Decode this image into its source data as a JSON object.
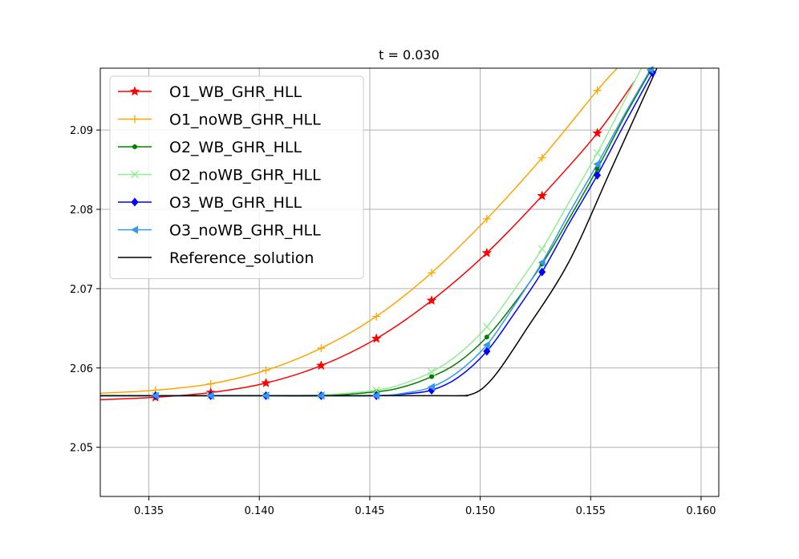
{
  "chart_data": {
    "type": "line",
    "title": "t = 0.030",
    "xlabel": "",
    "ylabel": "",
    "xlim": [
      0.1328,
      0.1608
    ],
    "ylim": [
      2.0438,
      2.0978
    ],
    "xticks": [
      0.135,
      0.14,
      0.145,
      0.15,
      0.155,
      0.16
    ],
    "xtick_labels": [
      "0.135",
      "0.140",
      "0.145",
      "0.150",
      "0.155",
      "0.160"
    ],
    "yticks": [
      2.05,
      2.06,
      2.07,
      2.08,
      2.09
    ],
    "ytick_labels": [
      "2.05",
      "2.06",
      "2.07",
      "2.08",
      "2.09"
    ],
    "grid": true,
    "legend_position": "top-left",
    "series": [
      {
        "name": "O1_WB_GHR_HLL",
        "color": "#ff0000",
        "marker": "star",
        "x": [
          0.1328,
          0.1353,
          0.1378,
          0.1403,
          0.1428,
          0.1453,
          0.1478,
          0.1503,
          0.1528,
          0.1553,
          0.157
        ],
        "y": [
          2.056,
          2.0563,
          2.0569,
          2.0581,
          2.0603,
          2.0637,
          2.0685,
          2.0745,
          2.0817,
          2.0896,
          2.0962
        ],
        "marker_x": [
          0.1353,
          0.1378,
          0.1403,
          0.1428,
          0.1453,
          0.1478,
          0.1503,
          0.1528,
          0.1553
        ],
        "marker_y": [
          2.0563,
          2.0569,
          2.0581,
          2.0603,
          2.0637,
          2.0685,
          2.0745,
          2.0817,
          2.0896
        ]
      },
      {
        "name": "O1_noWB_GHR_HLL",
        "color": "#ffa500",
        "marker": "plus",
        "x": [
          0.1328,
          0.1353,
          0.1378,
          0.1403,
          0.1428,
          0.1453,
          0.1478,
          0.1503,
          0.1528,
          0.1553,
          0.1562
        ],
        "y": [
          2.0568,
          2.0572,
          2.058,
          2.0597,
          2.0625,
          2.0665,
          2.072,
          2.0788,
          2.0865,
          2.095,
          2.0978
        ],
        "marker_x": [
          0.1353,
          0.1378,
          0.1403,
          0.1428,
          0.1453,
          0.1478,
          0.1503,
          0.1528,
          0.1553
        ],
        "marker_y": [
          2.0572,
          2.058,
          2.0597,
          2.0625,
          2.0665,
          2.072,
          2.0788,
          2.0865,
          2.095
        ]
      },
      {
        "name": "O2_WB_GHR_HLL",
        "color": "#008000",
        "marker": "point",
        "x": [
          0.1328,
          0.1353,
          0.1378,
          0.1403,
          0.1428,
          0.1453,
          0.1465,
          0.1478,
          0.149,
          0.1503,
          0.1515,
          0.1528,
          0.154,
          0.1553,
          0.1565,
          0.1577
        ],
        "y": [
          2.0565,
          2.0565,
          2.0565,
          2.0565,
          2.0565,
          2.057,
          2.0576,
          2.0589,
          2.0607,
          2.0639,
          2.068,
          2.0731,
          2.0787,
          2.0851,
          2.0915,
          2.0974
        ],
        "marker_x": [
          0.1353,
          0.1378,
          0.1403,
          0.1428,
          0.1453,
          0.1478,
          0.1503,
          0.1528,
          0.1553,
          0.1577
        ],
        "marker_y": [
          2.0565,
          2.0565,
          2.0565,
          2.0565,
          2.057,
          2.0589,
          2.0639,
          2.0731,
          2.0851,
          2.0974
        ]
      },
      {
        "name": "O2_noWB_GHR_HLL",
        "color": "#90ee90",
        "marker": "x",
        "x": [
          0.1328,
          0.1353,
          0.1378,
          0.1403,
          0.1428,
          0.1453,
          0.1465,
          0.1478,
          0.149,
          0.1503,
          0.1515,
          0.1528,
          0.154,
          0.1553,
          0.1565,
          0.1573
        ],
        "y": [
          2.0565,
          2.0565,
          2.0565,
          2.0565,
          2.0566,
          2.0572,
          2.058,
          2.0595,
          2.0617,
          2.0652,
          2.0697,
          2.075,
          2.0808,
          2.0871,
          2.0935,
          2.0978
        ],
        "marker_x": [
          0.1353,
          0.1378,
          0.1403,
          0.1428,
          0.1453,
          0.1478,
          0.1503,
          0.1528,
          0.1553
        ],
        "marker_y": [
          2.0565,
          2.0565,
          2.0565,
          2.0566,
          2.0572,
          2.0595,
          2.0652,
          2.075,
          2.0871
        ]
      },
      {
        "name": "O3_WB_GHR_HLL",
        "color": "#0000ff",
        "marker": "diamond",
        "x": [
          0.1328,
          0.1353,
          0.1378,
          0.1403,
          0.1428,
          0.1453,
          0.1465,
          0.1478,
          0.149,
          0.1503,
          0.1515,
          0.1528,
          0.154,
          0.1553,
          0.1565,
          0.1578
        ],
        "y": [
          2.0565,
          2.0565,
          2.0565,
          2.0565,
          2.0565,
          2.0565,
          2.0567,
          2.0572,
          2.0588,
          2.0621,
          2.0667,
          2.0721,
          2.0781,
          2.0843,
          2.0906,
          2.0972
        ],
        "marker_x": [
          0.1353,
          0.1378,
          0.1403,
          0.1428,
          0.1453,
          0.1478,
          0.1503,
          0.1528,
          0.1553,
          0.1578
        ],
        "marker_y": [
          2.0565,
          2.0565,
          2.0565,
          2.0565,
          2.0565,
          2.0572,
          2.0621,
          2.0721,
          2.0843,
          2.0972
        ]
      },
      {
        "name": "O3_noWB_GHR_HLL",
        "color": "#3399ee",
        "marker": "triangle-left",
        "x": [
          0.1328,
          0.1353,
          0.1378,
          0.1403,
          0.1428,
          0.1453,
          0.1465,
          0.1478,
          0.149,
          0.1503,
          0.1515,
          0.1528,
          0.154,
          0.1553,
          0.1565,
          0.1577
        ],
        "y": [
          2.0565,
          2.0565,
          2.0565,
          2.0565,
          2.0565,
          2.0565,
          2.0568,
          2.0576,
          2.0595,
          2.0629,
          2.0677,
          2.0733,
          2.0794,
          2.0857,
          2.0918,
          2.0976
        ],
        "marker_x": [
          0.1353,
          0.1378,
          0.1403,
          0.1428,
          0.1453,
          0.1478,
          0.1503,
          0.1528,
          0.1553,
          0.1577
        ],
        "marker_y": [
          2.0565,
          2.0565,
          2.0565,
          2.0565,
          2.0565,
          2.0576,
          2.0629,
          2.0733,
          2.0857,
          2.0976
        ]
      },
      {
        "name": "Reference_solution",
        "color": "#000000",
        "marker": "none",
        "x": [
          0.1328,
          0.148,
          0.149,
          0.1495,
          0.15,
          0.1505,
          0.151,
          0.152,
          0.154,
          0.156,
          0.158
        ],
        "y": [
          2.0565,
          2.0565,
          2.0565,
          2.0566,
          2.0572,
          2.0585,
          2.0603,
          2.0645,
          2.0733,
          2.0855,
          2.0978
        ],
        "marker_x": [],
        "marker_y": []
      }
    ]
  }
}
